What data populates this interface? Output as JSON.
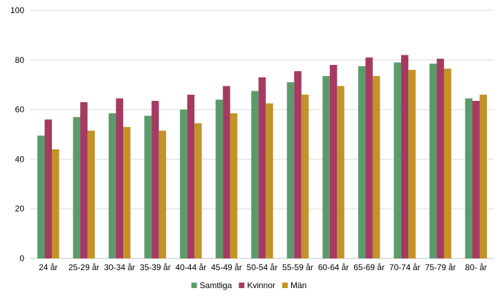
{
  "chart_data": {
    "type": "bar",
    "title": "",
    "xlabel": "",
    "ylabel": "",
    "ylim": [
      0,
      100
    ],
    "yticks": [
      0,
      20,
      40,
      60,
      80,
      100
    ],
    "grid": true,
    "legend_position": "bottom",
    "categories": [
      "24 år",
      "25-29 år",
      "30-34 år",
      "35-39 år",
      "40-44 år",
      "45-49 år",
      "50-54 år",
      "55-59 år",
      "60-64 år",
      "65-69 år",
      "70-74 år",
      "75-79 år",
      "80- år"
    ],
    "series": [
      {
        "name": "Samtliga",
        "color": "#5b9b6b",
        "values": [
          49.5,
          57,
          58.5,
          57.5,
          60,
          64,
          67.5,
          71,
          73.5,
          77.5,
          79,
          78.5,
          64.5
        ]
      },
      {
        "name": "Kvinnor",
        "color": "#a53a63",
        "values": [
          56,
          63,
          64.5,
          63.5,
          66,
          69.5,
          73,
          75.5,
          78,
          81,
          82,
          80.5,
          63.5
        ]
      },
      {
        "name": "Män",
        "color": "#c39328",
        "values": [
          44,
          51.5,
          53,
          51.5,
          54.5,
          58.5,
          62.5,
          66,
          69.5,
          73.5,
          76,
          76.5,
          66
        ]
      }
    ]
  }
}
